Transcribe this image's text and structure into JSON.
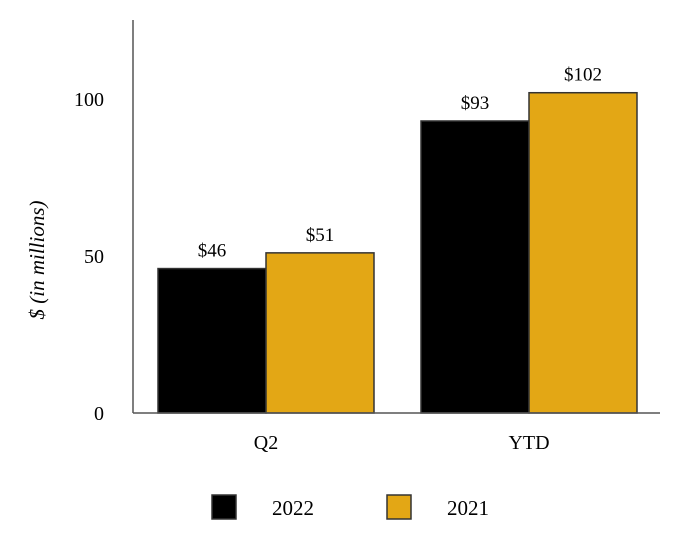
{
  "chart_data": {
    "type": "bar",
    "categories": [
      "Q2",
      "YTD"
    ],
    "series": [
      {
        "name": "2022",
        "values": [
          46,
          93
        ],
        "labels": [
          "$46",
          "$93"
        ],
        "color": "#000000"
      },
      {
        "name": "2021",
        "values": [
          51,
          102
        ],
        "labels": [
          "$51",
          "$102"
        ],
        "color": "#E3A715"
      }
    ],
    "ylabel": "$ (in millions)",
    "ylim": [
      0,
      126
    ],
    "yticks": [
      "0",
      "50",
      "100"
    ],
    "grid": false,
    "legend_position": "bottom"
  }
}
